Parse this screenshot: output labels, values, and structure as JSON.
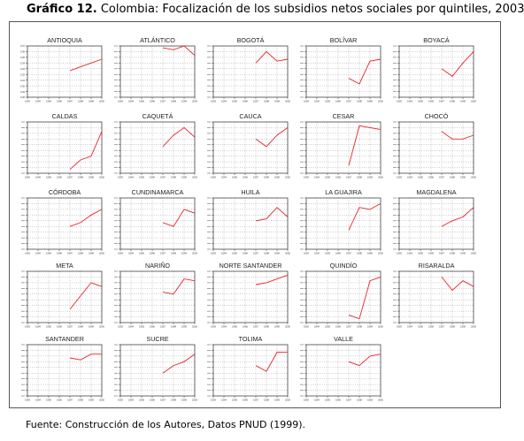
{
  "header": {
    "label": "Gráfico 12.",
    "title": "Colombia: Focalización de los subsidios netos sociales por quintiles, 2003"
  },
  "footer": {
    "source": "Fuente: Construcción de los Autores, Datos PNUD (1999)."
  },
  "colors": {
    "line": "#e8242a",
    "grid": "#9a9a9a",
    "axis": "#333333"
  },
  "chart_data": {
    "type": "line",
    "x_ticks": [
      "1993",
      "1994",
      "1995",
      "1996",
      "1997",
      "1998",
      "1999",
      "2000"
    ],
    "panels": [
      {
        "name": "ANTIOQUIA",
        "yticks": [
          "0.37",
          "0.36",
          "0.35",
          "0.34",
          "0.33",
          "0.32",
          "0.31",
          "0.30",
          "0.29",
          "0.28"
        ],
        "x": [
          1997,
          1998,
          1999,
          2000
        ],
        "y": [
          0.32,
          0.34,
          0.36,
          0.38
        ]
      },
      {
        "name": "ATLÁNTICO",
        "yticks": [
          "",
          "",
          "",
          "",
          "",
          "",
          "",
          "",
          "",
          ""
        ],
        "x": [
          1997,
          1998,
          1999,
          2000
        ],
        "y": [
          0.44,
          0.43,
          0.45,
          0.4
        ]
      },
      {
        "name": "BOGOTÁ",
        "yticks": [
          "",
          "",
          "",
          "",
          "",
          "",
          "",
          "",
          "",
          ""
        ],
        "x": [
          1997,
          1998,
          1999,
          2000
        ],
        "y": [
          0.36,
          0.42,
          0.37,
          0.38
        ]
      },
      {
        "name": "BOLÍVAR",
        "yticks": [
          "",
          "",
          "",
          "",
          "",
          "",
          "",
          "",
          "",
          ""
        ],
        "x": [
          1997,
          1998,
          1999,
          2000
        ],
        "y": [
          0.28,
          0.25,
          0.37,
          0.38
        ]
      },
      {
        "name": "BOYACÁ",
        "yticks": [
          "",
          "",
          "",
          "",
          "",
          "",
          "",
          "",
          "",
          ""
        ],
        "x": [
          1997,
          1998,
          1999,
          2000
        ],
        "y": [
          0.33,
          0.29,
          0.36,
          0.42
        ]
      },
      {
        "name": "CALDAS",
        "yticks": [
          "",
          "",
          "",
          "",
          "",
          "",
          "",
          "",
          "",
          ""
        ],
        "x": [
          1997,
          1998,
          1999,
          2000
        ],
        "y": [
          0.2,
          0.25,
          0.27,
          0.4
        ]
      },
      {
        "name": "CAQUETÁ",
        "yticks": [
          "",
          "",
          "",
          "",
          "",
          "",
          "",
          "",
          "",
          ""
        ],
        "x": [
          1997,
          1998,
          1999,
          2000
        ],
        "y": [
          0.32,
          0.38,
          0.42,
          0.37
        ]
      },
      {
        "name": "CAUCA",
        "yticks": [
          "",
          "",
          "",
          "",
          "",
          "",
          "",
          "",
          "",
          ""
        ],
        "x": [
          1997,
          1998,
          1999,
          2000
        ],
        "y": [
          0.36,
          0.32,
          0.38,
          0.42
        ]
      },
      {
        "name": "CESAR",
        "yticks": [
          "",
          "",
          "",
          "",
          "",
          "",
          "",
          "",
          "",
          ""
        ],
        "x": [
          1997,
          1998,
          1999,
          2000
        ],
        "y": [
          0.22,
          0.43,
          0.42,
          0.41
        ]
      },
      {
        "name": "CHOCÓ",
        "yticks": [
          "",
          "",
          "",
          "",
          "",
          "",
          "",
          "",
          "",
          ""
        ],
        "x": [
          1997,
          1998,
          1999,
          2000
        ],
        "y": [
          0.4,
          0.36,
          0.36,
          0.38
        ]
      },
      {
        "name": "CÓRDOBA",
        "yticks": [
          "",
          "",
          "",
          "",
          "",
          "",
          "",
          "",
          "",
          ""
        ],
        "x": [
          1997,
          1998,
          1999,
          2000
        ],
        "y": [
          0.3,
          0.32,
          0.36,
          0.39
        ]
      },
      {
        "name": "CUNDINAMARCA",
        "yticks": [
          "",
          "",
          "",
          "",
          "",
          "",
          "",
          "",
          "",
          ""
        ],
        "x": [
          1997,
          1998,
          1999,
          2000
        ],
        "y": [
          0.32,
          0.3,
          0.39,
          0.37
        ]
      },
      {
        "name": "HUILA",
        "yticks": [
          "",
          "",
          "",
          "",
          "",
          "",
          "",
          "",
          "",
          ""
        ],
        "x": [
          1997,
          1998,
          1999,
          2000
        ],
        "y": [
          0.33,
          0.34,
          0.4,
          0.35
        ]
      },
      {
        "name": "LA GUAJIRA",
        "yticks": [
          "",
          "",
          "",
          "",
          "",
          "",
          "",
          "",
          "",
          ""
        ],
        "x": [
          1997,
          1998,
          1999,
          2000
        ],
        "y": [
          0.28,
          0.4,
          0.39,
          0.42
        ]
      },
      {
        "name": "MAGDALENA",
        "yticks": [
          "",
          "",
          "",
          "",
          "",
          "",
          "",
          "",
          "",
          ""
        ],
        "x": [
          1997,
          1998,
          1999,
          2000
        ],
        "y": [
          0.3,
          0.33,
          0.35,
          0.4
        ]
      },
      {
        "name": "META",
        "yticks": [
          "",
          "",
          "",
          "",
          "",
          "",
          "",
          "",
          "",
          ""
        ],
        "x": [
          1997,
          1998,
          1999,
          2000
        ],
        "y": [
          0.25,
          0.32,
          0.39,
          0.37
        ]
      },
      {
        "name": "NARIÑO",
        "yticks": [
          "",
          "",
          "",
          "",
          "",
          "",
          "",
          "",
          "",
          ""
        ],
        "x": [
          1997,
          1998,
          1999,
          2000
        ],
        "y": [
          0.34,
          0.33,
          0.41,
          0.4
        ]
      },
      {
        "name": "NORTE SANTANDER",
        "yticks": [
          "",
          "",
          "",
          "",
          "",
          "",
          "",
          "",
          "",
          ""
        ],
        "x": [
          1997,
          1998,
          1999,
          2000
        ],
        "y": [
          0.38,
          0.39,
          0.41,
          0.43
        ]
      },
      {
        "name": "QUINDÍO",
        "yticks": [
          "",
          "",
          "",
          "",
          "",
          "",
          "",
          "",
          "",
          ""
        ],
        "x": [
          1997,
          1998,
          1999,
          2000
        ],
        "y": [
          0.22,
          0.2,
          0.4,
          0.42
        ]
      },
      {
        "name": "RISARALDA",
        "yticks": [
          "",
          "",
          "",
          "",
          "",
          "",
          "",
          "",
          "",
          ""
        ],
        "x": [
          1997,
          1998,
          1999,
          2000
        ],
        "y": [
          0.42,
          0.35,
          0.4,
          0.37
        ]
      },
      {
        "name": "SANTANDER",
        "yticks": [
          "",
          "",
          "",
          "",
          "",
          "",
          "",
          "",
          "",
          ""
        ],
        "x": [
          1997,
          1998,
          1999,
          2000
        ],
        "y": [
          0.38,
          0.37,
          0.4,
          0.4
        ]
      },
      {
        "name": "SUCRE",
        "yticks": [
          "",
          "",
          "",
          "",
          "",
          "",
          "",
          "",
          "",
          ""
        ],
        "x": [
          1997,
          1998,
          1999,
          2000
        ],
        "y": [
          0.3,
          0.34,
          0.36,
          0.4
        ]
      },
      {
        "name": "TOLIMA",
        "yticks": [
          "",
          "",
          "",
          "",
          "",
          "",
          "",
          "",
          "",
          ""
        ],
        "x": [
          1997,
          1998,
          1999,
          2000
        ],
        "y": [
          0.34,
          0.31,
          0.41,
          0.41
        ]
      },
      {
        "name": "VALLE",
        "yticks": [
          "",
          "",
          "",
          "",
          "",
          "",
          "",
          "",
          "",
          ""
        ],
        "x": [
          1997,
          1998,
          1999,
          2000
        ],
        "y": [
          0.36,
          0.34,
          0.39,
          0.4
        ]
      }
    ],
    "ylim": [
      0.18,
      0.45
    ]
  }
}
